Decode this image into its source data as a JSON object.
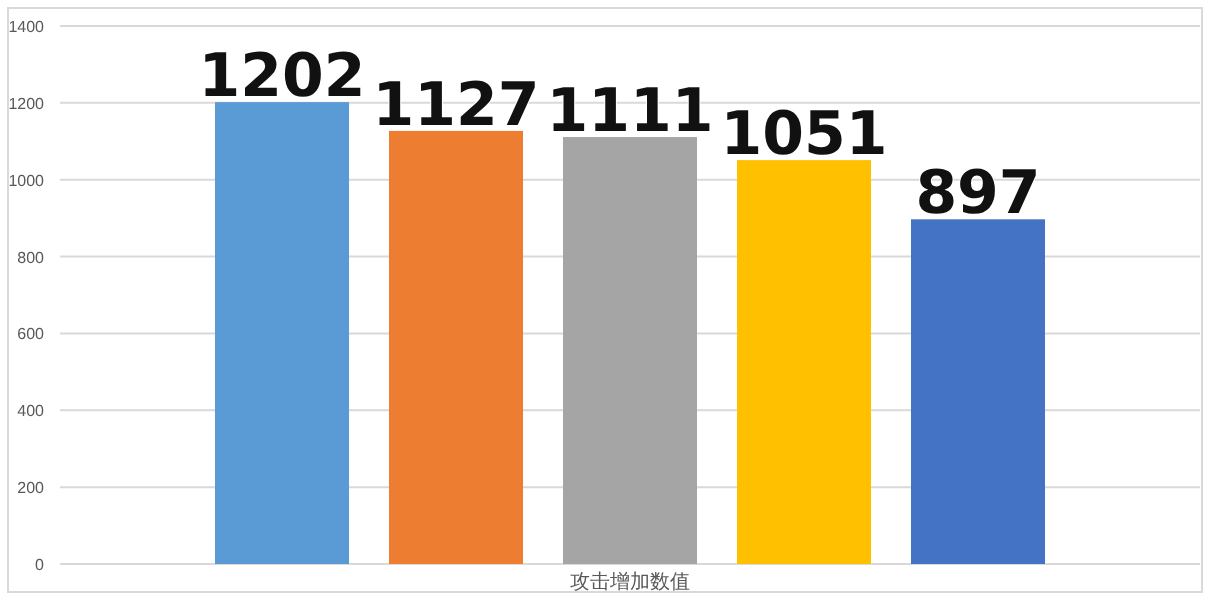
{
  "chart_data": {
    "type": "bar",
    "categories": [
      "攻击增加数值"
    ],
    "series": [
      {
        "color": "#5b9bd5",
        "values": [
          1202
        ]
      },
      {
        "color": "#ed7d31",
        "values": [
          1127
        ]
      },
      {
        "color": "#a5a5a5",
        "values": [
          1111
        ]
      },
      {
        "color": "#ffc000",
        "values": [
          1051
        ]
      },
      {
        "color": "#4472c4",
        "values": [
          897
        ]
      }
    ],
    "ylim": [
      0,
      1400
    ],
    "yticks": [
      0,
      200,
      400,
      600,
      800,
      1000,
      1200,
      1400
    ],
    "grid": "y",
    "data_labels": true
  }
}
